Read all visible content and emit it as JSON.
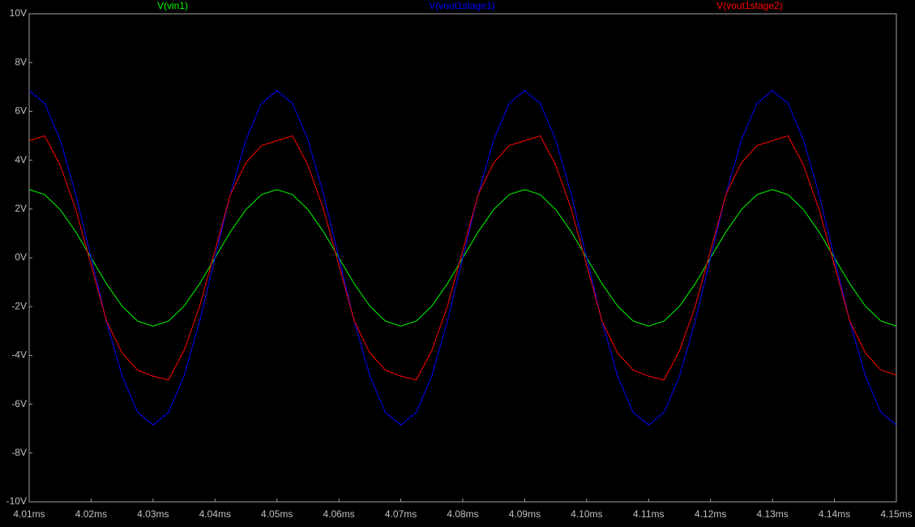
{
  "chart_data": {
    "type": "line",
    "x": [
      4.01,
      4.0125,
      4.015,
      4.0175,
      4.02,
      4.0225,
      4.025,
      4.0275,
      4.03,
      4.0325,
      4.035,
      4.0375,
      4.04,
      4.0425,
      4.045,
      4.0475,
      4.05,
      4.0525,
      4.055,
      4.0575,
      4.06,
      4.0625,
      4.065,
      4.0675,
      4.07,
      4.0725,
      4.075,
      4.0775,
      4.08,
      4.0825,
      4.085,
      4.0875,
      4.09,
      4.0925,
      4.095,
      4.0975,
      4.1,
      4.1025,
      4.105,
      4.1075,
      4.11,
      4.1125,
      4.115,
      4.1175,
      4.12,
      4.1225,
      4.125,
      4.1275,
      4.13,
      4.1325,
      4.135,
      4.1375,
      4.14,
      4.1425,
      4.145,
      4.1475,
      4.15
    ],
    "series": [
      {
        "name": "V(vin1)",
        "color": "#00ff00",
        "values": [
          2.8,
          2.59,
          1.98,
          1.07,
          0,
          -1.07,
          -1.98,
          -2.59,
          -2.8,
          -2.59,
          -1.98,
          -1.07,
          0,
          1.07,
          1.98,
          2.59,
          2.8,
          2.59,
          1.98,
          1.07,
          0,
          -1.07,
          -1.98,
          -2.59,
          -2.8,
          -2.59,
          -1.98,
          -1.07,
          0,
          1.07,
          1.98,
          2.59,
          2.8,
          2.59,
          1.98,
          1.07,
          0,
          -1.07,
          -1.98,
          -2.59,
          -2.8,
          -2.59,
          -1.98,
          -1.07,
          0,
          1.07,
          1.98,
          2.59,
          2.8,
          2.59,
          1.98,
          1.07,
          0,
          -1.07,
          -1.98,
          -2.59,
          -2.8
        ]
      },
      {
        "name": "V(vout1stage1)",
        "color": "#0000ff",
        "values": [
          6.85,
          6.33,
          4.84,
          2.62,
          0,
          -2.62,
          -4.84,
          -6.33,
          -6.85,
          -6.33,
          -4.84,
          -2.62,
          0,
          2.62,
          4.84,
          6.33,
          6.85,
          6.33,
          4.84,
          2.62,
          0,
          -2.62,
          -4.84,
          -6.33,
          -6.85,
          -6.33,
          -4.84,
          -2.62,
          0,
          2.62,
          4.84,
          6.33,
          6.85,
          6.33,
          4.84,
          2.62,
          0,
          -2.62,
          -4.84,
          -6.33,
          -6.85,
          -6.33,
          -4.84,
          -2.62,
          0,
          2.62,
          4.84,
          6.33,
          6.85,
          6.33,
          4.84,
          2.62,
          0,
          -2.62,
          -4.84,
          -6.33,
          -6.85
        ]
      },
      {
        "name": "V(vout1stage2)",
        "color": "#ff0000",
        "values": [
          4.8,
          5.0,
          3.8,
          2.0,
          -0.3,
          -2.6,
          -3.9,
          -4.6,
          -4.85,
          -5.0,
          -3.8,
          -2.0,
          0.3,
          2.6,
          3.9,
          4.6,
          4.8,
          5.0,
          3.8,
          2.0,
          -0.3,
          -2.6,
          -3.9,
          -4.6,
          -4.85,
          -5.0,
          -3.8,
          -2.0,
          0.3,
          2.6,
          3.9,
          4.6,
          4.8,
          5.0,
          3.8,
          2.0,
          -0.3,
          -2.6,
          -3.9,
          -4.6,
          -4.85,
          -5.0,
          -3.8,
          -2.0,
          0.3,
          2.6,
          3.9,
          4.6,
          4.8,
          5.0,
          3.8,
          2.0,
          -0.3,
          -2.6,
          -3.9,
          -4.6,
          -4.8
        ]
      }
    ],
    "xlim": [
      4.01,
      4.15
    ],
    "xticks": [
      {
        "value": 4.01,
        "label": "4.01ms"
      },
      {
        "value": 4.02,
        "label": "4.02ms"
      },
      {
        "value": 4.03,
        "label": "4.03ms"
      },
      {
        "value": 4.04,
        "label": "4.04ms"
      },
      {
        "value": 4.05,
        "label": "4.05ms"
      },
      {
        "value": 4.06,
        "label": "4.06ms"
      },
      {
        "value": 4.07,
        "label": "4.07ms"
      },
      {
        "value": 4.08,
        "label": "4.08ms"
      },
      {
        "value": 4.09,
        "label": "4.09ms"
      },
      {
        "value": 4.1,
        "label": "4.10ms"
      },
      {
        "value": 4.11,
        "label": "4.11ms"
      },
      {
        "value": 4.12,
        "label": "4.12ms"
      },
      {
        "value": 4.13,
        "label": "4.13ms"
      },
      {
        "value": 4.14,
        "label": "4.14ms"
      },
      {
        "value": 4.15,
        "label": "4.15ms"
      }
    ],
    "ylim": [
      -10,
      10
    ],
    "yticks": [
      {
        "value": 10,
        "label": "10V"
      },
      {
        "value": 8,
        "label": "8V"
      },
      {
        "value": 6,
        "label": "6V"
      },
      {
        "value": 4,
        "label": "4V"
      },
      {
        "value": 2,
        "label": "2V"
      },
      {
        "value": 0,
        "label": "0V"
      },
      {
        "value": -2,
        "label": "-2V"
      },
      {
        "value": -4,
        "label": "-4V"
      },
      {
        "value": -6,
        "label": "-6V"
      },
      {
        "value": -8,
        "label": "-8V"
      },
      {
        "value": -10,
        "label": "-10V"
      }
    ],
    "grid": false
  }
}
